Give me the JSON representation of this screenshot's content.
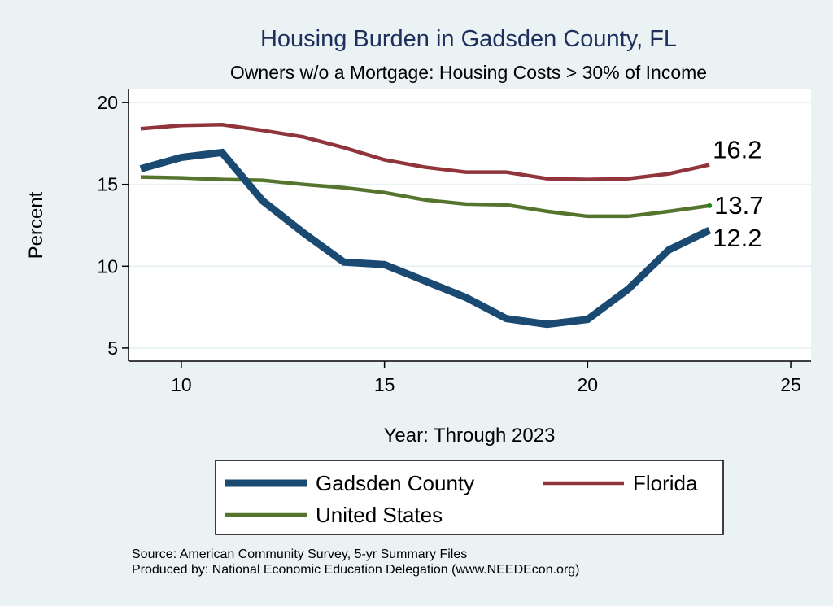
{
  "chart_data": {
    "type": "line",
    "title": "Housing Burden in Gadsden County, FL",
    "subtitle": "Owners w/o a Mortgage: Housing Costs > 30% of Income",
    "xlabel": "Year: Through 2023",
    "ylabel": "Percent",
    "xlim": [
      8.7,
      25.5
    ],
    "ylim": [
      4.2,
      20.8
    ],
    "xticks": [
      10,
      15,
      20,
      25
    ],
    "yticks": [
      5,
      10,
      15,
      20
    ],
    "grid": true,
    "x": [
      9,
      10,
      11,
      12,
      13,
      14,
      15,
      16,
      17,
      18,
      19,
      20,
      21,
      22,
      23
    ],
    "series": [
      {
        "name": "Gadsden County",
        "color": "#1a4a72",
        "width": 9,
        "values": [
          15.95,
          16.65,
          16.95,
          14.0,
          12.05,
          10.25,
          10.1,
          9.1,
          8.1,
          6.8,
          6.45,
          6.75,
          8.6,
          11.0,
          12.2
        ],
        "end_label": "12.2"
      },
      {
        "name": "Florida",
        "color": "#90353b",
        "width": 4.5,
        "values": [
          18.4,
          18.6,
          18.65,
          18.3,
          17.9,
          17.25,
          16.5,
          16.05,
          15.75,
          15.75,
          15.35,
          15.3,
          15.35,
          15.65,
          16.2
        ],
        "end_label": "16.2"
      },
      {
        "name": "United States",
        "color": "#55752f",
        "width": 4.5,
        "values": [
          15.45,
          15.4,
          15.3,
          15.25,
          15.0,
          14.8,
          14.5,
          14.05,
          13.8,
          13.75,
          13.35,
          13.05,
          13.05,
          13.35,
          13.7
        ],
        "end_label": "13.7"
      }
    ],
    "legend_placement": "bottom",
    "notes": [
      "Source: American Community Survey, 5-yr Summary Files",
      "Produced by: National Economic Education Delegation (www.NEEDEcon.org)"
    ]
  }
}
